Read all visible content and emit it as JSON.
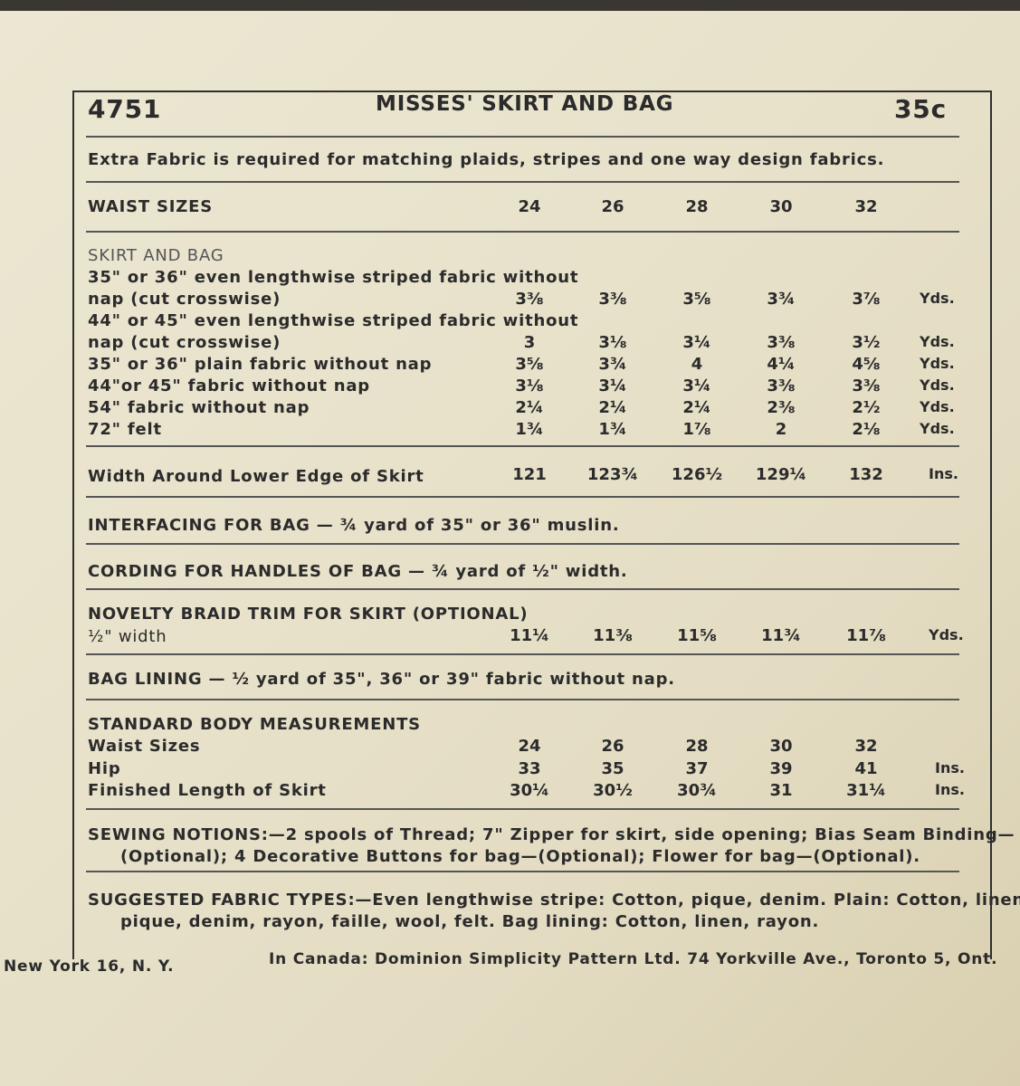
{
  "header": {
    "number": "4751",
    "title": "MISSES' SKIRT AND BAG",
    "price": "35c"
  },
  "note": "Extra Fabric is required for matching plaids, stripes and one way design fabrics.",
  "waist_sizes": {
    "label": "WAIST SIZES",
    "values": [
      "24",
      "26",
      "28",
      "30",
      "32"
    ]
  },
  "skirt_and_bag": {
    "heading": "SKIRT AND BAG",
    "rows": [
      {
        "label1": "35\" or 36\" even lengthwise striped fabric without",
        "label2": "nap (cut crosswise)",
        "values": [
          "3⅜",
          "3⅜",
          "3⅝",
          "3¾",
          "3⅞"
        ],
        "unit": "Yds."
      },
      {
        "label1": "44\" or 45\" even lengthwise striped fabric without",
        "label2": "nap (cut crosswise)",
        "values": [
          "3",
          "3⅛",
          "3¼",
          "3⅜",
          "3½"
        ],
        "unit": "Yds."
      },
      {
        "label2": "35\" or 36\" plain fabric without nap",
        "values": [
          "3⅝",
          "3¾",
          "4",
          "4¼",
          "4⅝"
        ],
        "unit": "Yds."
      },
      {
        "label2": "44\"or 45\" fabric without nap",
        "values": [
          "3⅛",
          "3¼",
          "3¼",
          "3⅜",
          "3⅜"
        ],
        "unit": "Yds."
      },
      {
        "label2": "54\" fabric without nap",
        "values": [
          "2¼",
          "2¼",
          "2¼",
          "2⅜",
          "2½"
        ],
        "unit": "Yds."
      },
      {
        "label2": "72\" felt",
        "values": [
          "1¾",
          "1¾",
          "1⅞",
          "2",
          "2⅛"
        ],
        "unit": "Yds."
      }
    ]
  },
  "width": {
    "label": "Width Around Lower Edge of Skirt",
    "values": [
      "121",
      "123¾",
      "126½",
      "129¼",
      "132"
    ],
    "unit": "Ins."
  },
  "interfacing": "INTERFACING FOR BAG — ¾ yard of 35\" or 36\" muslin.",
  "cording": "CORDING FOR HANDLES OF BAG — ¾ yard of ½\" width.",
  "braid": {
    "label1": "NOVELTY BRAID TRIM FOR SKIRT (OPTIONAL)",
    "label2": "½\" width",
    "values": [
      "11¼",
      "11⅜",
      "11⅝",
      "11¾",
      "11⅞"
    ],
    "unit": "Yds."
  },
  "lining": "BAG LINING — ½ yard of 35\", 36\" or 39\" fabric without nap.",
  "body": {
    "heading": "STANDARD BODY MEASUREMENTS",
    "rows": [
      {
        "label": "Waist Sizes",
        "values": [
          "24",
          "26",
          "28",
          "30",
          "32"
        ],
        "unit": ""
      },
      {
        "label": "Hip",
        "values": [
          "33",
          "35",
          "37",
          "39",
          "41"
        ],
        "unit": "Ins."
      },
      {
        "label": "Finished Length of Skirt",
        "values": [
          "30¼",
          "30½",
          "30¾",
          "31",
          "31¼"
        ],
        "unit": "Ins."
      }
    ]
  },
  "notions": {
    "line1": "SEWING NOTIONS:—2 spools of Thread; 7\" Zipper for skirt, side opening; Bias Seam Binding—",
    "line2": "(Optional); 4 Decorative Buttons for bag—(Optional); Flower for bag—(Optional)."
  },
  "fabrics": {
    "line1": "SUGGESTED FABRIC TYPES:—Even lengthwise stripe: Cotton, pique, denim. Plain: Cotton, linen,",
    "line2": "pique, denim, rayon, faille, wool, felt. Bag lining: Cotton, linen, rayon."
  },
  "footer": {
    "left": "New York 16, N. Y.",
    "right": "In Canada: Dominion Simplicity Pattern Ltd. 74 Yorkville Ave., Toronto 5, Ont."
  }
}
